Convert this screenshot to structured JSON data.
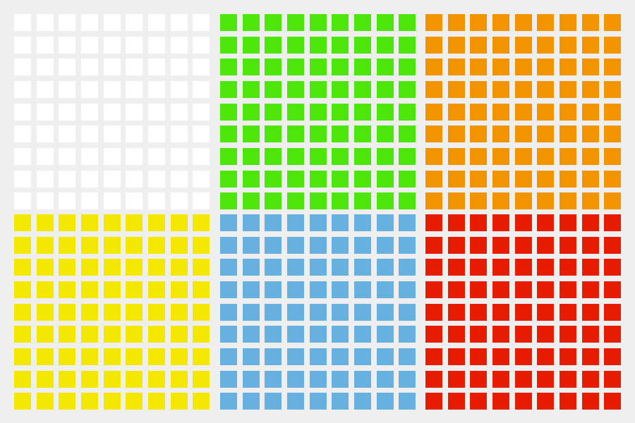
{
  "panels": [
    {
      "color": "#ffffff"
    },
    {
      "color": "#4de60a"
    },
    {
      "color": "#f29400"
    },
    {
      "color": "#f5e800"
    },
    {
      "color": "#67b1e0"
    },
    {
      "color": "#e61d00"
    }
  ]
}
